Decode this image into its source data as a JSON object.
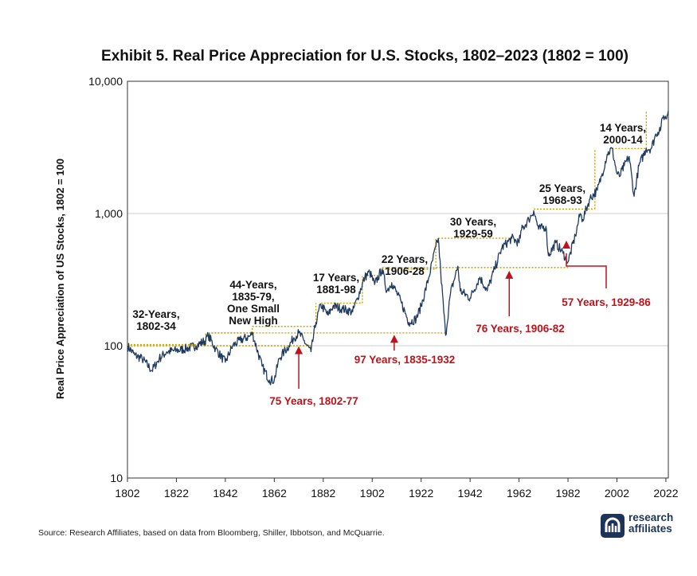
{
  "chart_data": {
    "type": "line",
    "title": "Exhibit 5. Real Price Appreciation for U.S. Stocks, 1802–2023 (1802 = 100)",
    "xlabel": "",
    "ylabel": "Real Price Appreciation of US Stocks, 1802 = 100",
    "y_scale": "log",
    "xlim": [
      1802,
      2023
    ],
    "ylim": [
      10,
      10000
    ],
    "grid": "horizontal",
    "x_ticks": [
      "1802",
      "1822",
      "1842",
      "1862",
      "1882",
      "1902",
      "1922",
      "1942",
      "1962",
      "1982",
      "2002",
      "2022"
    ],
    "y_ticks": [
      {
        "value": 10,
        "label": "10"
      },
      {
        "value": 100,
        "label": "100"
      },
      {
        "value": 1000,
        "label": "1,000"
      },
      {
        "value": 10000,
        "label": "10,000"
      }
    ],
    "series": [
      {
        "color": "#1f3a5f",
        "x": [
          1802,
          1805,
          1808,
          1812,
          1815,
          1818,
          1822,
          1826,
          1830,
          1834,
          1835,
          1838,
          1842,
          1845,
          1848,
          1852,
          1853,
          1857,
          1860,
          1862,
          1864,
          1866,
          1868,
          1870,
          1872,
          1874,
          1877,
          1879,
          1881,
          1884,
          1886,
          1890,
          1894,
          1896,
          1899,
          1901,
          1903,
          1906,
          1908,
          1910,
          1914,
          1917,
          1920,
          1922,
          1925,
          1928,
          1929,
          1930,
          1932,
          1934,
          1937,
          1938,
          1942,
          1946,
          1949,
          1952,
          1955,
          1959,
          1962,
          1963,
          1966,
          1968,
          1970,
          1973,
          1974,
          1977,
          1980,
          1982,
          1985,
          1987,
          1988,
          1991,
          1994,
          1996,
          1998,
          2000,
          2002,
          2003,
          2005,
          2007,
          2009,
          2011,
          2014,
          2016,
          2018,
          2020,
          2021,
          2022,
          2023
        ],
        "y": [
          100,
          85,
          80,
          65,
          80,
          90,
          92,
          95,
          100,
          110,
          120,
          95,
          75,
          100,
          110,
          118,
          125,
          70,
          55,
          55,
          80,
          90,
          100,
          115,
          125,
          110,
          90,
          150,
          205,
          170,
          200,
          190,
          180,
          230,
          330,
          360,
          290,
          380,
          260,
          300,
          210,
          150,
          160,
          200,
          320,
          560,
          650,
          360,
          120,
          250,
          400,
          260,
          230,
          330,
          260,
          380,
          550,
          650,
          600,
          750,
          900,
          1050,
          760,
          800,
          480,
          600,
          500,
          430,
          680,
          1000,
          900,
          1300,
          1500,
          2000,
          2800,
          3100,
          2000,
          1900,
          2300,
          2700,
          1350,
          2300,
          3100,
          3100,
          4000,
          4500,
          5500,
          5200,
          6000
        ]
      }
    ],
    "highs": [
      {
        "from": 1802,
        "to": 1834,
        "value": 102
      },
      {
        "from": 1835,
        "to": 1853,
        "value": 125
      },
      {
        "from": 1853,
        "to": 1879,
        "value": 140
      },
      {
        "from": 1881,
        "to": 1898,
        "value": 210
      },
      {
        "from": 1900,
        "to": 1906,
        "value": 340
      },
      {
        "from": 1906,
        "to": 1928,
        "value": 380
      },
      {
        "from": 1929,
        "to": 1959,
        "value": 650
      },
      {
        "from": 1968,
        "to": 1993,
        "value": 1080
      },
      {
        "from": 2000,
        "to": 2014,
        "value": 3100
      }
    ],
    "drawdown_spans": [
      {
        "from": 1802,
        "to": 1877,
        "value": 100
      },
      {
        "from": 1835,
        "to": 1932,
        "value": 125
      },
      {
        "from": 1906,
        "to": 1982,
        "value": 390
      }
    ],
    "annotations_black": [
      {
        "lines": [
          "32-Years,",
          "1802-34"
        ]
      },
      {
        "lines": [
          "44-Years,",
          "1835-79,",
          "One Small",
          "New High"
        ]
      },
      {
        "lines": [
          "17 Years,",
          "1881-98"
        ]
      },
      {
        "lines": [
          "22 Years,",
          "1906-28"
        ]
      },
      {
        "lines": [
          "30 Years,",
          "1929-59"
        ]
      },
      {
        "lines": [
          "25 Years,",
          "1968-93"
        ]
      },
      {
        "lines": [
          "14 Years,",
          "2000-14"
        ]
      }
    ],
    "annotations_red": [
      {
        "label": "75 Years, 1802-77",
        "arrow_x": 1872,
        "arrow_value": 105
      },
      {
        "label": "97 Years, 1835-1932",
        "arrow_x": 1911,
        "arrow_value": 128
      },
      {
        "label": "76 Years, 1906-82",
        "arrow_x": 1958,
        "arrow_value": 390
      },
      {
        "label": "57 Years, 1929-86",
        "arrow_x": 1981,
        "arrow_value": 660
      }
    ],
    "source": "Source: Research Affiliates, based on data from Bloomberg, Shiller, Ibbotson, and McQuarrie.",
    "logo": [
      "research",
      "affiliates"
    ]
  }
}
